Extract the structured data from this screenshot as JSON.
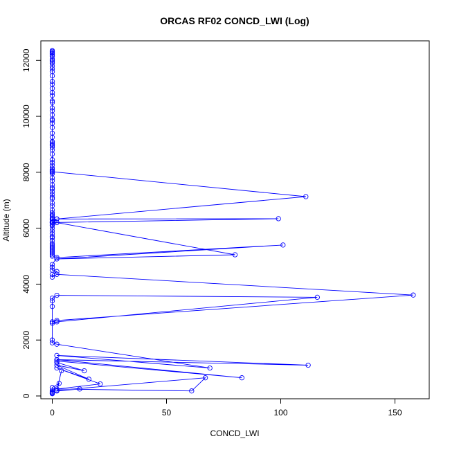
{
  "chart_data": {
    "type": "line",
    "title": "ORCAS RF02 CONCD_LWI (Log)",
    "xlabel": "CONCD_LWI",
    "ylabel": "Altitude (m)",
    "xlim": [
      -5,
      165
    ],
    "ylim": [
      -100,
      12700
    ],
    "xticks": [
      0,
      50,
      100,
      150
    ],
    "yticks": [
      0,
      2000,
      4000,
      6000,
      8000,
      10000,
      12000
    ],
    "grid": false,
    "legend": "none",
    "color": "#0000ff",
    "marker": "open-circle",
    "series": [
      {
        "x": [
          0,
          0,
          0,
          0,
          0,
          0,
          0,
          0,
          0,
          0,
          0,
          0,
          0,
          0,
          0,
          0,
          0,
          0,
          0,
          0,
          0,
          0,
          0,
          0,
          0,
          0,
          0,
          0,
          0,
          0,
          0,
          0,
          0,
          0,
          0,
          0,
          0,
          0,
          0,
          0,
          0,
          0,
          0,
          0,
          0,
          0,
          0,
          0,
          0,
          0,
          0,
          0,
          0,
          0,
          0,
          0,
          0,
          0,
          0,
          0,
          0,
          0,
          0,
          0,
          0,
          0,
          0,
          0,
          0,
          0,
          0,
          0,
          0,
          0,
          0,
          0,
          0,
          0,
          0,
          0,
          0,
          0,
          0,
          0,
          111,
          2,
          0,
          0,
          0,
          99,
          2,
          0,
          0,
          0,
          2,
          80,
          2,
          101,
          2,
          0,
          0,
          0,
          2,
          0,
          0,
          2,
          158,
          2,
          0,
          0,
          2,
          116,
          2,
          0,
          0,
          0,
          0,
          0,
          2,
          69,
          2,
          112,
          2,
          83,
          2,
          2,
          14,
          2,
          16,
          2,
          21,
          2,
          61,
          67,
          2,
          12,
          2,
          4,
          2,
          3,
          0,
          0,
          0,
          0,
          0,
          0
        ],
        "y": [
          12350,
          12320,
          12280,
          12250,
          12200,
          12150,
          12050,
          12000,
          11950,
          11900,
          11800,
          11700,
          11600,
          11450,
          11250,
          11150,
          11000,
          10850,
          10750,
          10550,
          10500,
          10300,
          10200,
          10050,
          9900,
          9850,
          9750,
          9600,
          9400,
          9250,
          9100,
          9050,
          9000,
          8950,
          8900,
          8800,
          8650,
          8450,
          8350,
          8250,
          8150,
          8100,
          8050,
          8000,
          7950,
          7800,
          7700,
          7550,
          7450,
          7400,
          7300,
          7200,
          7100,
          7050,
          6900,
          6800,
          6650,
          6550,
          6500,
          6450,
          6400,
          6350,
          6300,
          6250,
          6200,
          6150,
          6100,
          6000,
          5900,
          5800,
          5700,
          5650,
          5550,
          5450,
          5400,
          5350,
          5300,
          5250,
          5200,
          5150,
          5100,
          5050,
          5000,
          8020,
          7130,
          6330,
          6300,
          6250,
          6200,
          6340,
          6330,
          6200,
          6150,
          6100,
          6200,
          5050,
          4900,
          5400,
          4950,
          4700,
          4600,
          4500,
          4450,
          4350,
          4250,
          4350,
          3610,
          2700,
          2650,
          2600,
          2650,
          3530,
          3600,
          3500,
          3400,
          3200,
          2000,
          1900,
          1850,
          1000,
          1450,
          1100,
          1300,
          650,
          1250,
          1200,
          900,
          1100,
          600,
          1000,
          430,
          250,
          180,
          650,
          200,
          250,
          180,
          900,
          200,
          450,
          300,
          200,
          150,
          120,
          100,
          80
        ]
      }
    ]
  }
}
